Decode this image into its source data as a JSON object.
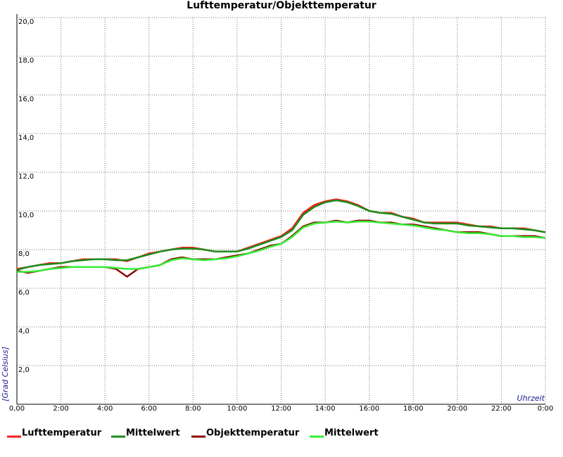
{
  "chart_data": {
    "type": "line",
    "title": "Lufttemperatur/Objekttemperatur",
    "y_label": "[Grad Celsius]",
    "x_label": "Uhrzeit",
    "x": [
      0,
      0.5,
      1,
      1.5,
      2,
      2.5,
      3,
      3.5,
      4,
      4.5,
      5,
      5.5,
      6,
      6.5,
      7,
      7.5,
      8,
      8.5,
      9,
      9.5,
      10,
      10.5,
      11,
      11.5,
      12,
      12.5,
      13,
      13.5,
      14,
      14.5,
      15,
      15.5,
      16,
      16.5,
      17,
      17.5,
      18,
      18.5,
      19,
      19.5,
      20,
      20.5,
      21,
      21.5,
      22,
      22.5,
      23,
      23.5,
      24
    ],
    "series": [
      {
        "name": "Lufttemperatur",
        "color": "#ff1a1a",
        "values": [
          7.0,
          7.1,
          7.2,
          7.3,
          7.3,
          7.4,
          7.5,
          7.5,
          7.5,
          7.5,
          7.4,
          7.6,
          7.8,
          7.9,
          8.0,
          8.1,
          8.1,
          8.0,
          7.9,
          7.9,
          7.9,
          8.1,
          8.3,
          8.5,
          8.7,
          9.1,
          9.9,
          10.3,
          10.5,
          10.6,
          10.5,
          10.3,
          10.0,
          9.9,
          9.9,
          9.7,
          9.6,
          9.4,
          9.4,
          9.4,
          9.4,
          9.3,
          9.2,
          9.2,
          9.1,
          9.1,
          9.1,
          9.0,
          8.9
        ]
      },
      {
        "name": "Mittelwert",
        "color": "#1a8c1a",
        "values": [
          6.95,
          7.1,
          7.2,
          7.25,
          7.3,
          7.4,
          7.45,
          7.5,
          7.5,
          7.45,
          7.45,
          7.6,
          7.75,
          7.9,
          8.0,
          8.05,
          8.05,
          8.0,
          7.9,
          7.9,
          7.9,
          8.05,
          8.25,
          8.45,
          8.65,
          9.0,
          9.8,
          10.2,
          10.45,
          10.55,
          10.45,
          10.25,
          10.0,
          9.9,
          9.85,
          9.7,
          9.55,
          9.4,
          9.35,
          9.35,
          9.35,
          9.25,
          9.2,
          9.15,
          9.1,
          9.1,
          9.05,
          9.0,
          8.9
        ]
      },
      {
        "name": "Objekttemperatur",
        "color": "#8b0000",
        "values": [
          6.9,
          6.8,
          6.9,
          7.0,
          7.1,
          7.1,
          7.1,
          7.1,
          7.1,
          7.0,
          6.6,
          7.0,
          7.1,
          7.2,
          7.5,
          7.6,
          7.5,
          7.5,
          7.5,
          7.6,
          7.7,
          7.8,
          8.0,
          8.2,
          8.3,
          8.7,
          9.2,
          9.4,
          9.4,
          9.5,
          9.4,
          9.5,
          9.5,
          9.4,
          9.4,
          9.3,
          9.3,
          9.2,
          9.1,
          9.0,
          8.9,
          8.9,
          8.9,
          8.8,
          8.7,
          8.7,
          8.7,
          8.7,
          8.6
        ]
      },
      {
        "name": "Mittelwert",
        "color": "#33ee33",
        "values": [
          6.85,
          6.85,
          6.9,
          7.0,
          7.05,
          7.1,
          7.1,
          7.1,
          7.1,
          7.05,
          7.0,
          7.0,
          7.1,
          7.2,
          7.45,
          7.55,
          7.5,
          7.45,
          7.5,
          7.55,
          7.65,
          7.8,
          7.95,
          8.15,
          8.3,
          8.65,
          9.15,
          9.35,
          9.4,
          9.45,
          9.4,
          9.45,
          9.45,
          9.4,
          9.35,
          9.3,
          9.25,
          9.15,
          9.05,
          9.0,
          8.9,
          8.85,
          8.85,
          8.8,
          8.7,
          8.7,
          8.65,
          8.65,
          8.6
        ]
      }
    ],
    "xlim": [
      0,
      24
    ],
    "xticks": [
      {
        "value": 0,
        "label": "0,00"
      },
      {
        "value": 2,
        "label": "2:00"
      },
      {
        "value": 4,
        "label": "4:00"
      },
      {
        "value": 6,
        "label": "6:00"
      },
      {
        "value": 8,
        "label": "8:00"
      },
      {
        "value": 10,
        "label": "10:00"
      },
      {
        "value": 12,
        "label": "12:00"
      },
      {
        "value": 14,
        "label": "14:00"
      },
      {
        "value": 16,
        "label": "16:00"
      },
      {
        "value": 18,
        "label": "18:00"
      },
      {
        "value": 20,
        "label": "20:00"
      },
      {
        "value": 22,
        "label": "22:00"
      },
      {
        "value": 24,
        "label": "0:00"
      }
    ],
    "ylim": [
      0,
      20
    ],
    "yticks": [
      {
        "value": 2,
        "label": "2,0"
      },
      {
        "value": 4,
        "label": "4,0"
      },
      {
        "value": 6,
        "label": "6,0"
      },
      {
        "value": 8,
        "label": "8,0"
      },
      {
        "value": 10,
        "label": "10,0"
      },
      {
        "value": 12,
        "label": "12,0"
      },
      {
        "value": 14,
        "label": "14,0"
      },
      {
        "value": 16,
        "label": "16,0"
      },
      {
        "value": 18,
        "label": "18,0"
      },
      {
        "value": 20,
        "label": "20,0"
      }
    ],
    "grid": true
  }
}
